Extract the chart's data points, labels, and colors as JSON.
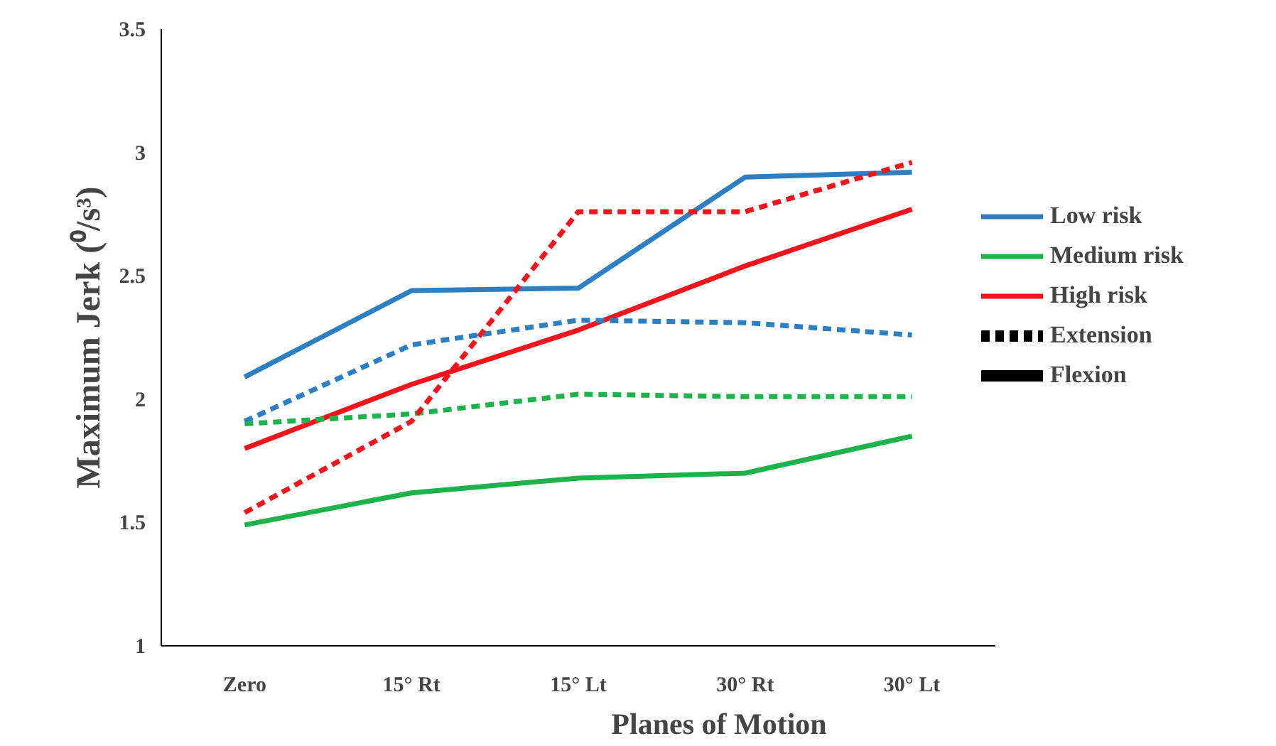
{
  "chart_data": {
    "type": "line",
    "xlabel": "Planes of Motion",
    "ylabel": "Maximum Jerk (⁰/s³)",
    "categories": [
      "Zero",
      "15° Rt",
      "15° Lt",
      "30° Rt",
      "30° Lt"
    ],
    "ylim": [
      1,
      3.5
    ],
    "yticks": [
      1,
      1.5,
      2,
      2.5,
      3,
      3.5
    ],
    "grid": false,
    "legend": "right",
    "series": [
      {
        "name": "Low risk",
        "color": "#2e7fc1",
        "line_style": "solid",
        "values": [
          2.09,
          2.44,
          2.45,
          2.9,
          2.92
        ]
      },
      {
        "name": "Medium risk",
        "color": "#1db24a",
        "line_style": "solid",
        "values": [
          1.49,
          1.62,
          1.68,
          1.7,
          1.85
        ]
      },
      {
        "name": "High risk",
        "color": "#f5141b",
        "line_style": "solid",
        "values": [
          1.8,
          2.06,
          2.28,
          2.54,
          2.77
        ]
      },
      {
        "color": "#2e7fc1",
        "line_style": "dashed",
        "values": [
          1.91,
          2.22,
          2.32,
          2.31,
          2.26
        ]
      },
      {
        "color": "#1db24a",
        "line_style": "dashed",
        "values": [
          1.9,
          1.94,
          2.02,
          2.01,
          2.01
        ]
      },
      {
        "color": "#f5141b",
        "line_style": "dashed",
        "values": [
          1.54,
          1.91,
          2.76,
          2.76,
          2.96
        ]
      }
    ],
    "annotations": [
      "Extension",
      "Flexion"
    ]
  }
}
